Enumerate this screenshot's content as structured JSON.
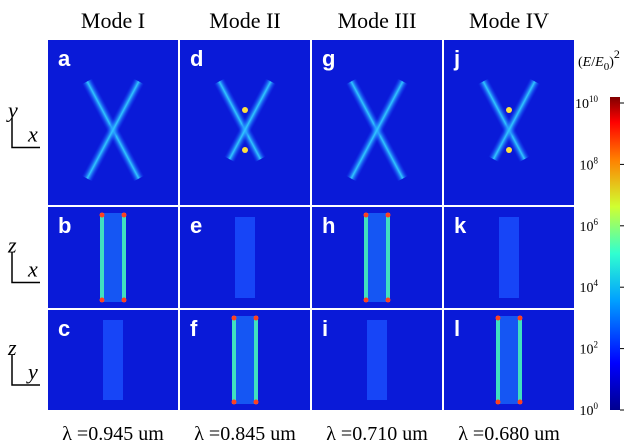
{
  "column_titles": [
    "Mode I",
    "Mode II",
    "Mode III",
    "Mode IV"
  ],
  "panel_labels": [
    [
      "a",
      "d",
      "g",
      "j"
    ],
    [
      "b",
      "e",
      "h",
      "k"
    ],
    [
      "c",
      "f",
      "i",
      "l"
    ]
  ],
  "axes": [
    {
      "vertical": "y",
      "horizontal": "x"
    },
    {
      "vertical": "z",
      "horizontal": "x"
    },
    {
      "vertical": "z",
      "horizontal": "y"
    }
  ],
  "colorbar": {
    "title": {
      "open": "(",
      "num": "E",
      "slash": "/",
      "den": "E",
      "sub": "0",
      "close": ")",
      "sup": "2"
    },
    "ticks": [
      {
        "base": "10",
        "exp": "10"
      },
      {
        "base": "10",
        "exp": "8"
      },
      {
        "base": "10",
        "exp": "6"
      },
      {
        "base": "10",
        "exp": "4"
      },
      {
        "base": "10",
        "exp": "2"
      },
      {
        "base": "10",
        "exp": "0"
      }
    ]
  },
  "wavelengths": [
    "λ =0.945 um",
    "λ =0.845 um",
    "λ =0.710 um",
    "λ =0.680 um"
  ]
}
